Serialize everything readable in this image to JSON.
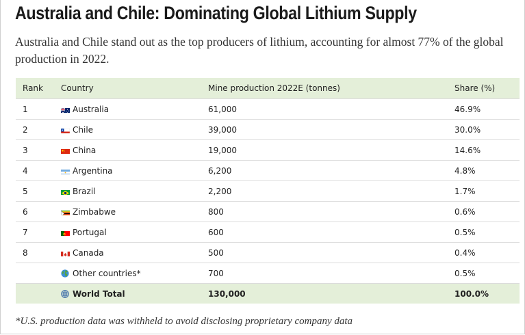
{
  "header": {
    "title": "Australia and Chile: Dominating Global Lithium Supply",
    "subtitle": "Australia and Chile stand out as the top producers of lithium, accounting for almost 77% of the global production in 2022."
  },
  "table": {
    "columns": {
      "rank": "Rank",
      "country": "Country",
      "production": "Mine production 2022E (tonnes)",
      "share": "Share (%)"
    },
    "rows": [
      {
        "rank": "1",
        "country": "Australia",
        "production": "61,000",
        "share": "46.9%",
        "flag_icon": "australia-flag-icon"
      },
      {
        "rank": "2",
        "country": "Chile",
        "production": "39,000",
        "share": "30.0%",
        "flag_icon": "chile-flag-icon"
      },
      {
        "rank": "3",
        "country": "China",
        "production": "19,000",
        "share": "14.6%",
        "flag_icon": "china-flag-icon"
      },
      {
        "rank": "4",
        "country": "Argentina",
        "production": "6,200",
        "share": "4.8%",
        "flag_icon": "argentina-flag-icon"
      },
      {
        "rank": "5",
        "country": "Brazil",
        "production": "2,200",
        "share": "1.7%",
        "flag_icon": "brazil-flag-icon"
      },
      {
        "rank": "6",
        "country": "Zimbabwe",
        "production": "800",
        "share": "0.6%",
        "flag_icon": "zimbabwe-flag-icon"
      },
      {
        "rank": "7",
        "country": "Portugal",
        "production": "600",
        "share": "0.5%",
        "flag_icon": "portugal-flag-icon"
      },
      {
        "rank": "8",
        "country": "Canada",
        "production": "500",
        "share": "0.4%",
        "flag_icon": "canada-flag-icon"
      },
      {
        "rank": "",
        "country": "Other countries*",
        "production": "700",
        "share": "0.5%",
        "flag_icon": "earth-globe-icon"
      }
    ],
    "total": {
      "rank": "",
      "country": "World Total",
      "production": "130,000",
      "share": "100.0%",
      "flag_icon": "globe-meridians-icon"
    }
  },
  "footnote": "*U.S. production data was withheld to avoid disclosing proprietary company data",
  "colors": {
    "header_row_bg": "#e4efd9",
    "row_divider": "#dcdcdc",
    "title_text": "#1b1b1b"
  }
}
